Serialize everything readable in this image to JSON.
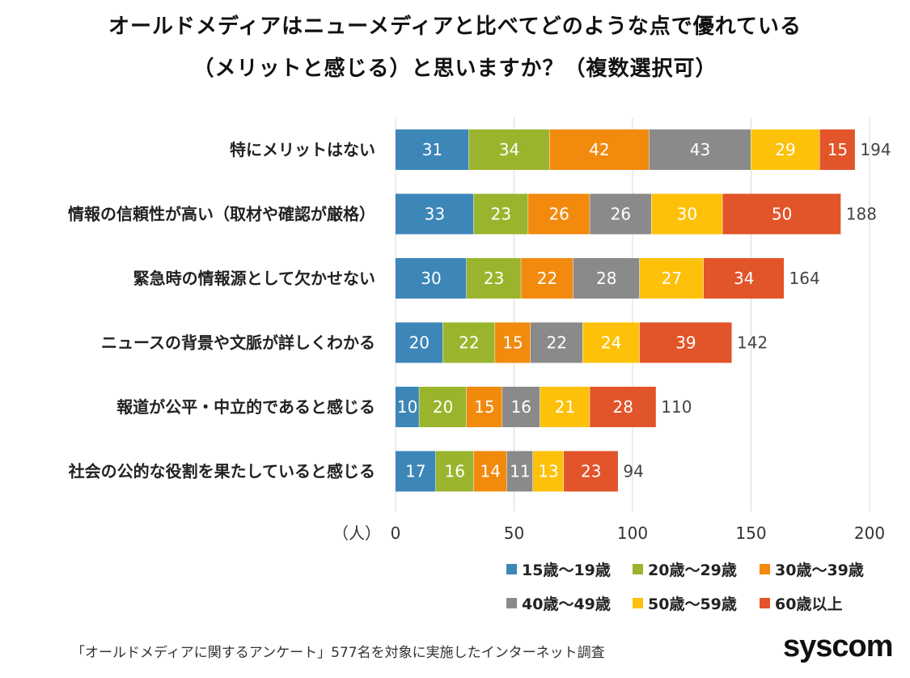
{
  "chart_data": {
    "type": "bar",
    "orientation": "horizontal",
    "stacked": true,
    "title_line1": "オールドメディアはニューメディアと比べてどのような点で優れている",
    "title_line2": "（メリットと感じる）と思いますか？（複数選択可）",
    "xlabel": "（人）",
    "xlim": [
      0,
      200
    ],
    "xticks": [
      "0",
      "50",
      "100",
      "150",
      "200"
    ],
    "categories": [
      "特にメリットはない",
      "情報の信頼性が高い（取材や確認が厳格）",
      "緊急時の情報源として欠かせない",
      "ニュースの背景や文脈が詳しくわかる",
      "報道が公平・中立的であると感じる",
      "社会の公的な役割を果たしていると感じる"
    ],
    "series": [
      {
        "name": "15歳～19歳",
        "color": "#3d86b8",
        "values": [
          31,
          33,
          30,
          20,
          10,
          17
        ]
      },
      {
        "name": "20歳～29歳",
        "color": "#9ab52d",
        "values": [
          34,
          23,
          23,
          22,
          20,
          16
        ]
      },
      {
        "name": "30歳～39歳",
        "color": "#f28a0e",
        "values": [
          42,
          26,
          22,
          15,
          15,
          14
        ]
      },
      {
        "name": "40歳～49歳",
        "color": "#8a8a8a",
        "values": [
          43,
          26,
          28,
          22,
          16,
          11
        ]
      },
      {
        "name": "50歳～59歳",
        "color": "#fdc10a",
        "values": [
          29,
          30,
          27,
          24,
          21,
          13
        ]
      },
      {
        "name": "60歳以上",
        "color": "#e2542a",
        "values": [
          15,
          50,
          34,
          39,
          28,
          23
        ]
      }
    ],
    "totals": [
      194,
      188,
      164,
      142,
      110,
      94
    ],
    "legend_position": "bottom-right",
    "grid": true
  },
  "footer": {
    "note": "「オールドメディアに関するアンケート」577名を対象に実施したインターネット調査",
    "logo": "syscom"
  }
}
